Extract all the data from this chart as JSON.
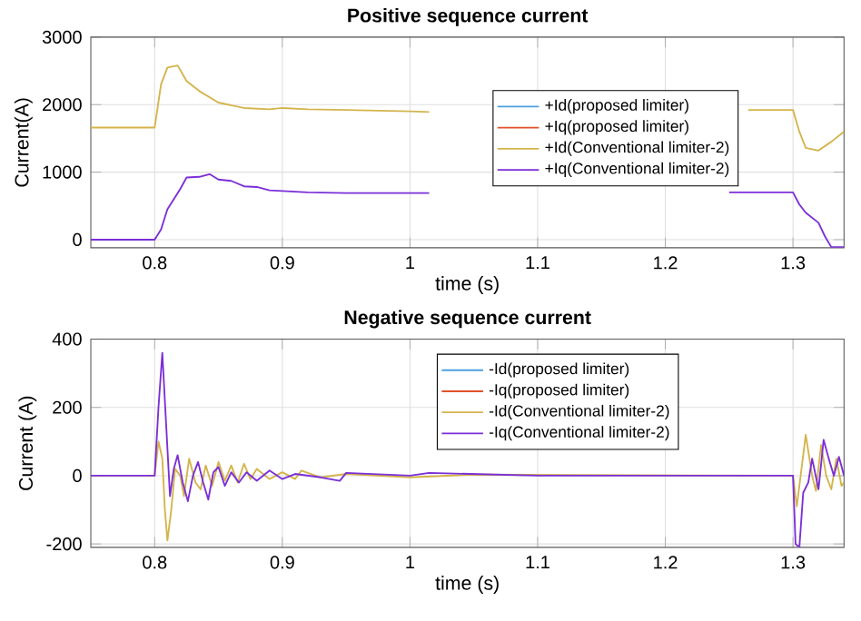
{
  "chart_data": [
    {
      "type": "line",
      "title": "Positive sequence current",
      "xlabel": "time (s)",
      "ylabel": "Current(A)",
      "xlim": [
        0.75,
        1.34
      ],
      "ylim": [
        -120,
        3000
      ],
      "xticks": [
        0.8,
        0.9,
        1,
        1.1,
        1.2,
        1.3
      ],
      "yticks": [
        0,
        1000,
        2000,
        3000
      ],
      "grid": true,
      "legend": "right",
      "series": [
        {
          "name": "+Id(proposed limiter)",
          "color": "#4d9fe0"
        },
        {
          "name": "+Iq(proposed limiter)",
          "color": "#e0502a"
        },
        {
          "name": "+Id(Conventional limiter-2)",
          "color": "#d4b44c",
          "x": [
            0.75,
            0.8,
            0.805,
            0.81,
            0.818,
            0.825,
            0.835,
            0.85,
            0.87,
            0.89,
            0.9,
            0.92,
            0.95,
            1.0,
            1.015,
            1.02,
            1.265,
            1.3,
            1.305,
            1.31,
            1.32,
            1.33,
            1.34
          ],
          "values": [
            1660,
            1660,
            2300,
            2550,
            2580,
            2350,
            2200,
            2030,
            1950,
            1930,
            1950,
            1930,
            1920,
            1900,
            1890,
            null,
            1920,
            1920,
            1600,
            1360,
            1320,
            1450,
            1600
          ]
        },
        {
          "name": "+Iq(Conventional limiter-2)",
          "color": "#7b2fd8",
          "x": [
            0.75,
            0.8,
            0.805,
            0.81,
            0.82,
            0.825,
            0.835,
            0.843,
            0.85,
            0.86,
            0.87,
            0.88,
            0.89,
            0.9,
            0.92,
            0.95,
            1.0,
            1.015,
            1.02,
            1.25,
            1.3,
            1.305,
            1.31,
            1.32,
            1.325,
            1.33,
            1.34
          ],
          "values": [
            0,
            0,
            150,
            450,
            750,
            920,
            930,
            970,
            890,
            870,
            790,
            780,
            730,
            720,
            700,
            690,
            690,
            690,
            null,
            700,
            700,
            520,
            400,
            250,
            50,
            -110,
            -110
          ]
        }
      ]
    },
    {
      "type": "line",
      "title": "Negative sequence current",
      "xlabel": "time (s)",
      "ylabel": "Current (A)",
      "xlim": [
        0.75,
        1.34
      ],
      "ylim": [
        -210,
        400
      ],
      "xticks": [
        0.8,
        0.9,
        1,
        1.1,
        1.2,
        1.3
      ],
      "yticks": [
        -200,
        0,
        200,
        400
      ],
      "grid": true,
      "legend": "top",
      "series": [
        {
          "name": "-Id(proposed limiter)",
          "color": "#4d9fe0"
        },
        {
          "name": "-Iq(proposed limiter)",
          "color": "#e0502a"
        },
        {
          "name": "-Id(Conventional limiter-2)",
          "color": "#d4b44c",
          "x": [
            0.75,
            0.8,
            0.803,
            0.806,
            0.808,
            0.81,
            0.813,
            0.816,
            0.82,
            0.823,
            0.827,
            0.832,
            0.836,
            0.84,
            0.845,
            0.85,
            0.855,
            0.86,
            0.865,
            0.87,
            0.875,
            0.88,
            0.89,
            0.9,
            0.91,
            0.915,
            0.93,
            0.95,
            1.0,
            1.05,
            1.3,
            1.303,
            1.306,
            1.31,
            1.315,
            1.318,
            1.322,
            1.326,
            1.33,
            1.334,
            1.338,
            1.34
          ],
          "values": [
            0,
            0,
            100,
            50,
            -100,
            -190,
            -100,
            20,
            0,
            -60,
            50,
            -20,
            -40,
            30,
            -30,
            40,
            -15,
            30,
            -20,
            35,
            -10,
            20,
            -10,
            10,
            -10,
            15,
            -5,
            5,
            -5,
            3,
            0,
            -90,
            0,
            120,
            0,
            -45,
            90,
            0,
            -40,
            50,
            -30,
            -20
          ]
        },
        {
          "name": "-Iq(Conventional limiter-2)",
          "color": "#7b2fd8",
          "x": [
            0.75,
            0.8,
            0.803,
            0.806,
            0.809,
            0.812,
            0.815,
            0.818,
            0.822,
            0.826,
            0.83,
            0.834,
            0.838,
            0.842,
            0.846,
            0.85,
            0.855,
            0.86,
            0.866,
            0.872,
            0.88,
            0.89,
            0.9,
            0.91,
            0.93,
            0.945,
            0.95,
            1.0,
            1.015,
            1.1,
            1.3,
            1.302,
            1.305,
            1.308,
            1.312,
            1.315,
            1.32,
            1.324,
            1.328,
            1.332,
            1.336,
            1.34
          ],
          "values": [
            0,
            0,
            200,
            360,
            150,
            -60,
            20,
            60,
            -20,
            -75,
            0,
            40,
            -20,
            -70,
            10,
            25,
            -30,
            10,
            -20,
            10,
            -15,
            15,
            -10,
            5,
            -5,
            -15,
            8,
            0,
            8,
            0,
            0,
            -200,
            -210,
            -50,
            -20,
            50,
            -40,
            105,
            50,
            0,
            55,
            0
          ]
        }
      ]
    }
  ]
}
